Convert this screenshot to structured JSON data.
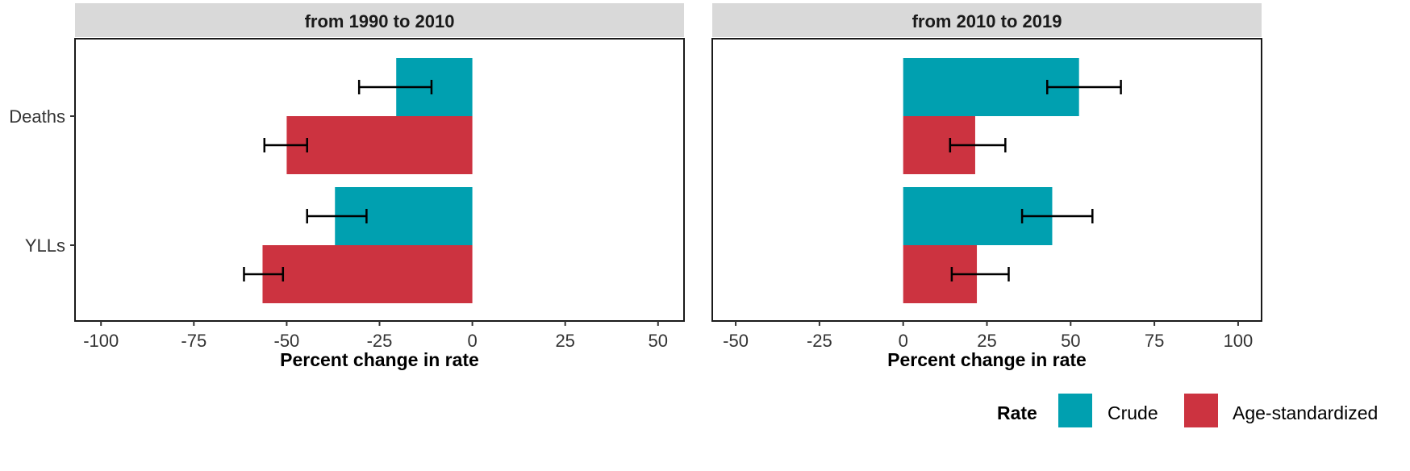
{
  "colors": {
    "Crude": "#00A0B0",
    "Age-standardized": "#CC3340",
    "strip": "#D9D9D9"
  },
  "legend": {
    "title": "Rate",
    "items": [
      "Crude",
      "Age-standardized"
    ]
  },
  "chart_data": [
    {
      "type": "bar",
      "orientation": "horizontal",
      "facet": "from 1990 to 2010",
      "categories": [
        "Deaths",
        "YLLs"
      ],
      "xlabel": "Percent change in rate",
      "xlim": [
        -107,
        57
      ],
      "xticks": [
        -100,
        -75,
        -50,
        -25,
        0,
        25,
        50
      ],
      "grid": false,
      "series": [
        {
          "name": "Crude",
          "values": [
            -20.5,
            -37
          ],
          "lower": [
            -30.5,
            -44.5
          ],
          "upper": [
            -11,
            -28.5
          ]
        },
        {
          "name": "Age-standardized",
          "values": [
            -50,
            -56.5
          ],
          "lower": [
            -56,
            -61.5
          ],
          "upper": [
            -44.5,
            -51
          ]
        }
      ]
    },
    {
      "type": "bar",
      "orientation": "horizontal",
      "facet": "from 2010 to 2019",
      "categories": [
        "Deaths",
        "YLLs"
      ],
      "xlabel": "Percent change in rate",
      "xlim": [
        -57,
        107
      ],
      "xticks": [
        -50,
        -25,
        0,
        25,
        50,
        75,
        100
      ],
      "grid": false,
      "series": [
        {
          "name": "Crude",
          "values": [
            52.5,
            44.5
          ],
          "lower": [
            43,
            35.5
          ],
          "upper": [
            65,
            56.5
          ]
        },
        {
          "name": "Age-standardized",
          "values": [
            21.5,
            22
          ],
          "lower": [
            14,
            14.5
          ],
          "upper": [
            30.5,
            31.5
          ]
        }
      ]
    }
  ]
}
